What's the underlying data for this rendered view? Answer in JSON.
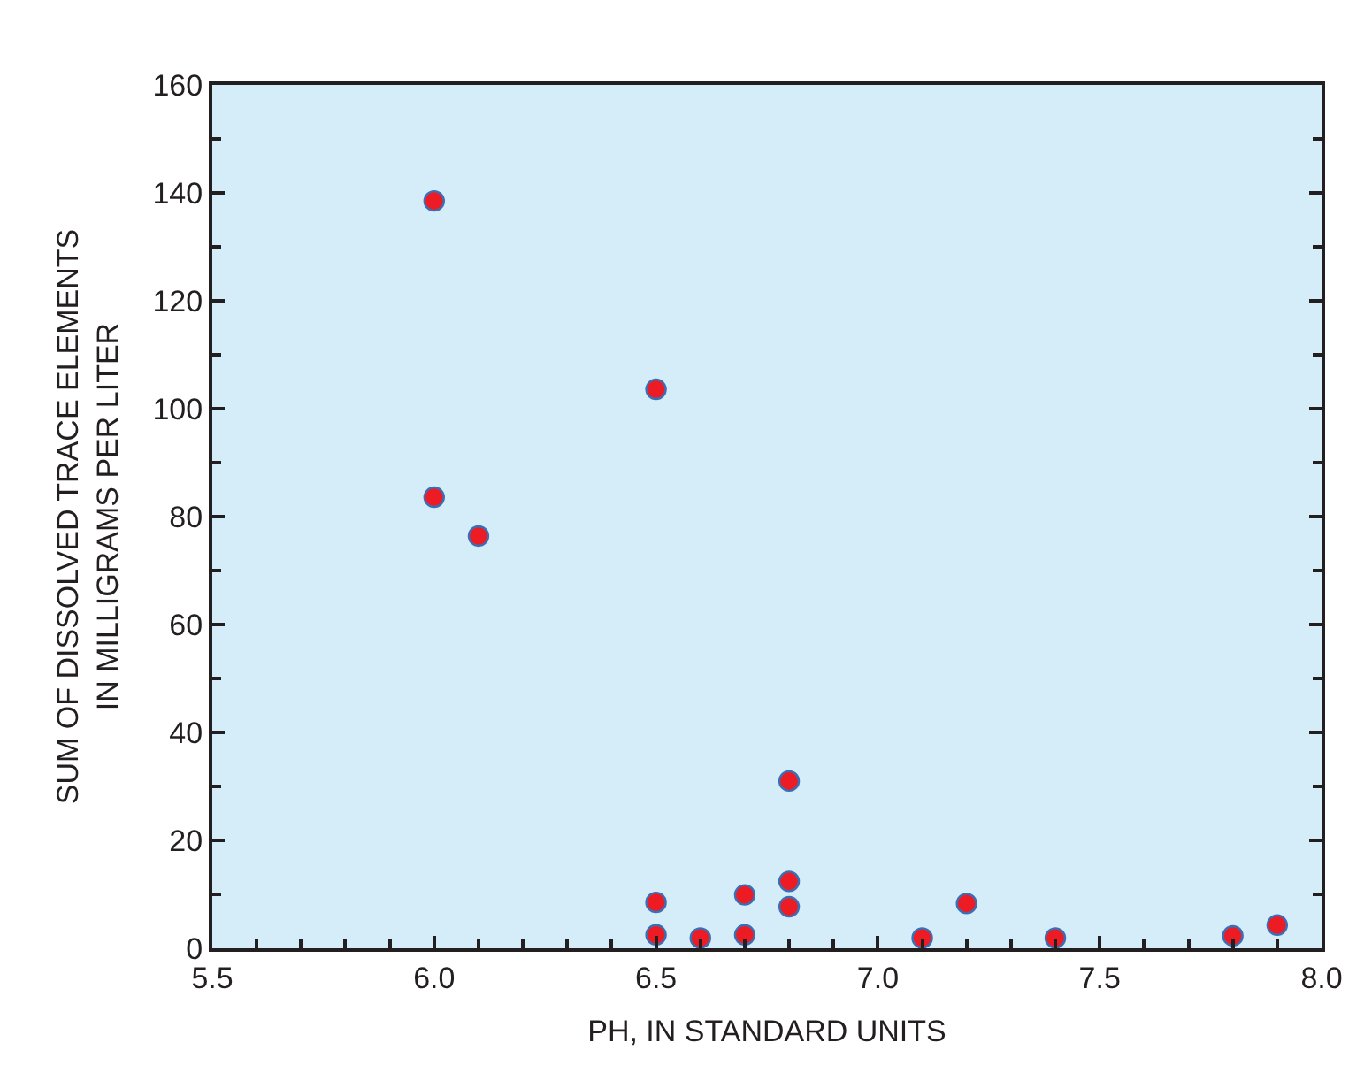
{
  "chart_data": {
    "type": "scatter",
    "xlabel": "PH, IN STANDARD UNITS",
    "ylabel": "SUM OF DISSOLVED TRACE ELEMENTS\nIN MILLIGRAMS PER LITER",
    "x": [
      6.0,
      6.0,
      6.1,
      6.5,
      6.5,
      6.5,
      6.6,
      6.7,
      6.7,
      6.8,
      6.8,
      6.8,
      7.1,
      7.2,
      7.4,
      7.8,
      7.9
    ],
    "series": [
      {
        "color": "#ed1c24",
        "values": [
          138.5,
          83.6,
          76.4,
          103.6,
          8.5,
          2.5,
          1.9,
          9.9,
          2.5,
          31,
          12.4,
          7.7,
          1.9,
          8.3,
          1.9,
          2.3,
          4.3
        ]
      }
    ],
    "xlim": [
      5.5,
      8.0
    ],
    "xticks": [
      {
        "value": 5.5,
        "label": "5.5"
      },
      {
        "value": 6.0,
        "label": "6.0"
      },
      {
        "value": 6.5,
        "label": "6.5"
      },
      {
        "value": 7.0,
        "label": "7.0"
      },
      {
        "value": 7.5,
        "label": "7.5"
      },
      {
        "value": 8.0,
        "label": "8.0"
      }
    ],
    "ylim": [
      0,
      160
    ],
    "yticks": [
      0,
      20,
      40,
      60,
      80,
      100,
      120,
      140,
      160
    ],
    "marker": "circle"
  }
}
